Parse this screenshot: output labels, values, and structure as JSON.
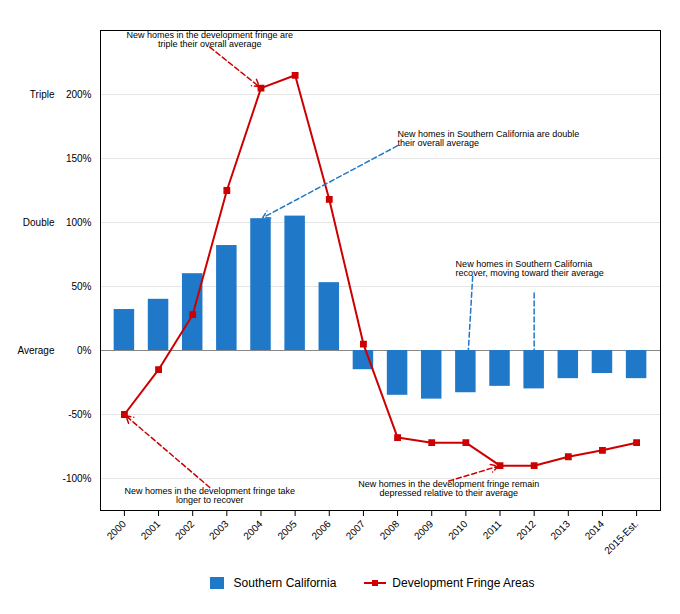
{
  "chart_data": {
    "type": "bar",
    "categories": [
      "2000",
      "2001",
      "2002",
      "2003",
      "2004",
      "2005",
      "2006",
      "2007",
      "2008",
      "2009",
      "2010",
      "2011",
      "2012",
      "2013",
      "2014",
      "2015-Est."
    ],
    "series": [
      {
        "name": "Southern California",
        "type": "bar",
        "color": "#1F78C8",
        "values": [
          32,
          40,
          60,
          82,
          103,
          105,
          53,
          -15,
          -35,
          -38,
          -33,
          -28,
          -30,
          -22,
          -18,
          -22
        ]
      },
      {
        "name": "Development Fringe Areas",
        "type": "line",
        "color": "#CC0000",
        "marker": "square",
        "values": [
          -50,
          -15,
          28,
          125,
          205,
          215,
          118,
          5,
          -68,
          -72,
          -72,
          -90,
          -90,
          -83,
          -78,
          -72
        ]
      }
    ],
    "ylim": [
      -125,
      250
    ],
    "yticks": [
      {
        "value": -100,
        "label": "-100%"
      },
      {
        "value": -50,
        "label": "-50%"
      },
      {
        "value": 0,
        "label": "0%"
      },
      {
        "value": 50,
        "label": "50%"
      },
      {
        "value": 100,
        "label": "100%"
      },
      {
        "value": 150,
        "label": "150%"
      },
      {
        "value": 200,
        "label": "200%"
      }
    ],
    "y_side_labels": [
      {
        "value": 0,
        "label": "Average"
      },
      {
        "value": 100,
        "label": "Double"
      },
      {
        "value": 200,
        "label": "Triple"
      }
    ],
    "grid": true,
    "legend": "bottom",
    "annotations": [
      {
        "text": "New homes in the development fringe are\ntriple their overall average",
        "series": "Development Fringe Areas",
        "points": [
          "2004"
        ]
      },
      {
        "text": "New homes in Southern California are double\ntheir overall average",
        "series": "Southern California",
        "points": [
          "2004"
        ]
      },
      {
        "text": "New homes in Southern California\nrecover, moving toward their average",
        "series": "Southern California",
        "points": [
          "2010",
          "2012"
        ]
      },
      {
        "text": "New homes in the development fringe take\nlonger to recover",
        "series": "Development Fringe Areas",
        "points": [
          "2000"
        ]
      },
      {
        "text": "New homes in the development fringe remain\ndepressed relative to their average",
        "series": "Development Fringe Areas",
        "points": [
          "2011"
        ]
      }
    ]
  }
}
